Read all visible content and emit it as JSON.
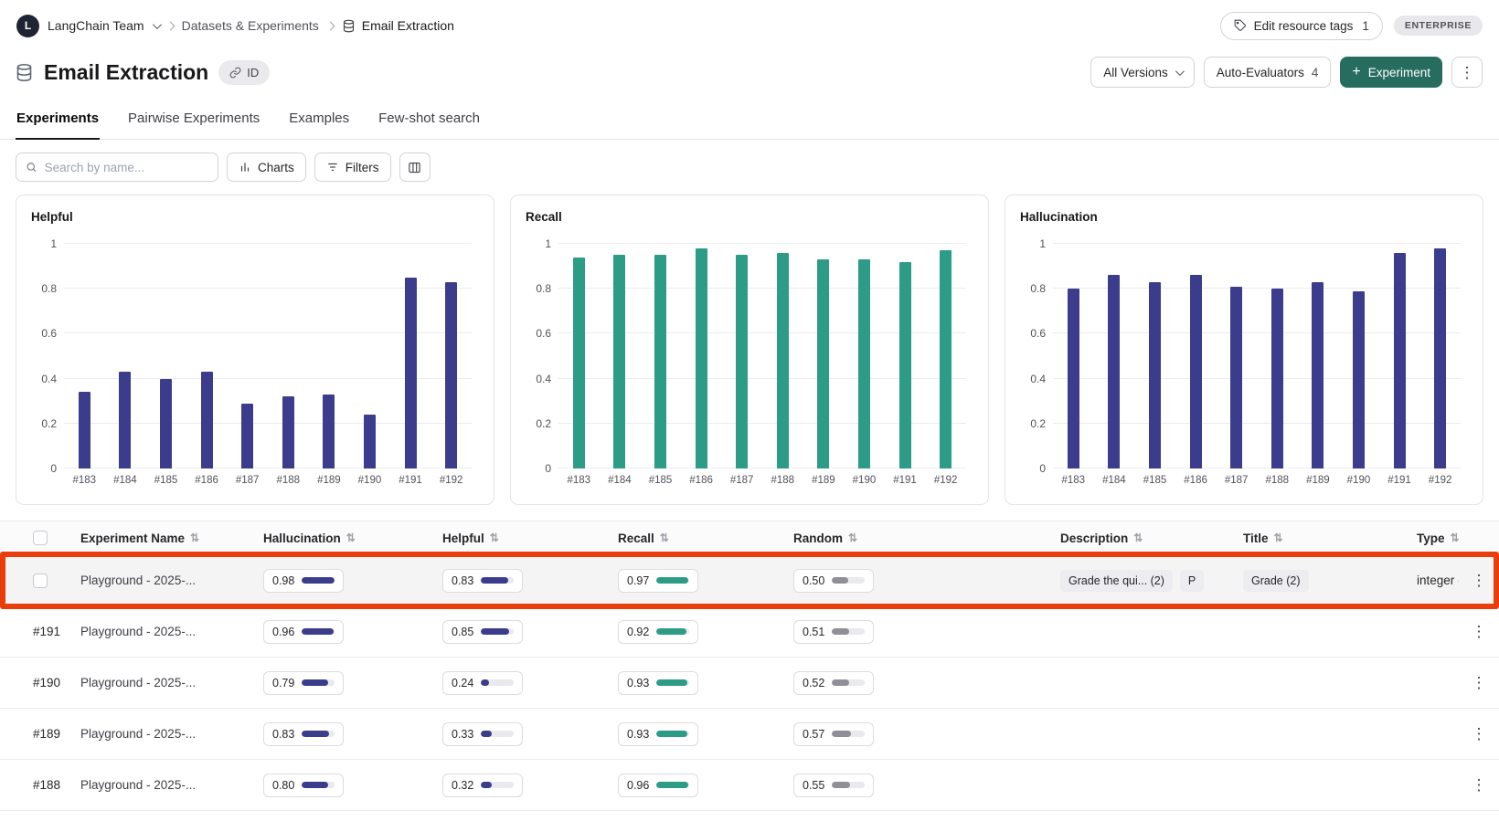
{
  "colors": {
    "navy": "#3b3d8c",
    "teal": "#2d9c86",
    "gray": "#8f9097",
    "accent": "#266d60",
    "highlight": "#e93d0c"
  },
  "topbar": {
    "team_name": "LangChain Team",
    "breadcrumb_parent": "Datasets & Experiments",
    "breadcrumb_current": "Email Extraction",
    "edit_tags_label": "Edit resource tags",
    "edit_tags_count": "1",
    "plan_badge": "ENTERPRISE"
  },
  "header": {
    "title": "Email Extraction",
    "id_button_label": "ID",
    "versions_dropdown": "All Versions",
    "auto_evaluators_label": "Auto-Evaluators",
    "auto_evaluators_count": "4",
    "new_experiment_label": "Experiment"
  },
  "tabs": [
    {
      "label": "Experiments",
      "active": true
    },
    {
      "label": "Pairwise Experiments",
      "active": false
    },
    {
      "label": "Examples",
      "active": false
    },
    {
      "label": "Few-shot search",
      "active": false
    }
  ],
  "toolbar": {
    "search_placeholder": "Search by name...",
    "charts_button": "Charts",
    "filters_button": "Filters"
  },
  "chart_data": [
    {
      "type": "bar",
      "title": "Helpful",
      "categories": [
        "#183",
        "#184",
        "#185",
        "#186",
        "#187",
        "#188",
        "#189",
        "#190",
        "#191",
        "#192"
      ],
      "values": [
        0.34,
        0.43,
        0.4,
        0.43,
        0.29,
        0.32,
        0.33,
        0.24,
        0.85,
        0.83
      ],
      "ylim": [
        0,
        1
      ],
      "yticks": [
        0,
        0.2,
        0.4,
        0.6,
        0.8,
        1
      ],
      "bar_color": "#3b3d8c",
      "grid": true,
      "legend": false
    },
    {
      "type": "bar",
      "title": "Recall",
      "categories": [
        "#183",
        "#184",
        "#185",
        "#186",
        "#187",
        "#188",
        "#189",
        "#190",
        "#191",
        "#192"
      ],
      "values": [
        0.94,
        0.95,
        0.95,
        0.98,
        0.95,
        0.96,
        0.93,
        0.93,
        0.92,
        0.97
      ],
      "ylim": [
        0,
        1
      ],
      "yticks": [
        0,
        0.2,
        0.4,
        0.6,
        0.8,
        1
      ],
      "bar_color": "#2d9c86",
      "grid": true,
      "legend": false
    },
    {
      "type": "bar",
      "title": "Hallucination",
      "categories": [
        "#183",
        "#184",
        "#185",
        "#186",
        "#187",
        "#188",
        "#189",
        "#190",
        "#191",
        "#192"
      ],
      "values": [
        0.8,
        0.86,
        0.83,
        0.86,
        0.81,
        0.8,
        0.83,
        0.79,
        0.96,
        0.98
      ],
      "ylim": [
        0,
        1
      ],
      "yticks": [
        0,
        0.2,
        0.4,
        0.6,
        0.8,
        1
      ],
      "bar_color": "#3b3d8c",
      "grid": true,
      "legend": false
    }
  ],
  "table": {
    "columns": [
      {
        "label": "Experiment Name"
      },
      {
        "label": "Hallucination"
      },
      {
        "label": "Helpful"
      },
      {
        "label": "Recall"
      },
      {
        "label": "Random"
      },
      {
        "label": "Description"
      },
      {
        "label": "Title"
      },
      {
        "label": "Type"
      }
    ],
    "rows": [
      {
        "id": "",
        "checkbox": true,
        "highlighted": true,
        "name": "Playground - 2025-...",
        "hallucination": "0.98",
        "helpful": "0.83",
        "recall": "0.97",
        "random": "0.50",
        "description": "Grade the qui... (2)",
        "description_extra": "P",
        "title": "Grade (2)",
        "type": "integer ("
      },
      {
        "id": "#191",
        "checkbox": false,
        "highlighted": false,
        "name": "Playground - 2025-...",
        "hallucination": "0.96",
        "helpful": "0.85",
        "recall": "0.92",
        "random": "0.51",
        "description": "",
        "description_extra": "",
        "title": "",
        "type": ""
      },
      {
        "id": "#190",
        "checkbox": false,
        "highlighted": false,
        "name": "Playground - 2025-...",
        "hallucination": "0.79",
        "helpful": "0.24",
        "recall": "0.93",
        "random": "0.52",
        "description": "",
        "description_extra": "",
        "title": "",
        "type": ""
      },
      {
        "id": "#189",
        "checkbox": false,
        "highlighted": false,
        "name": "Playground - 2025-...",
        "hallucination": "0.83",
        "helpful": "0.33",
        "recall": "0.93",
        "random": "0.57",
        "description": "",
        "description_extra": "",
        "title": "",
        "type": ""
      },
      {
        "id": "#188",
        "checkbox": false,
        "highlighted": false,
        "name": "Playground - 2025-...",
        "hallucination": "0.80",
        "helpful": "0.32",
        "recall": "0.96",
        "random": "0.55",
        "description": "",
        "description_extra": "",
        "title": "",
        "type": ""
      }
    ]
  }
}
